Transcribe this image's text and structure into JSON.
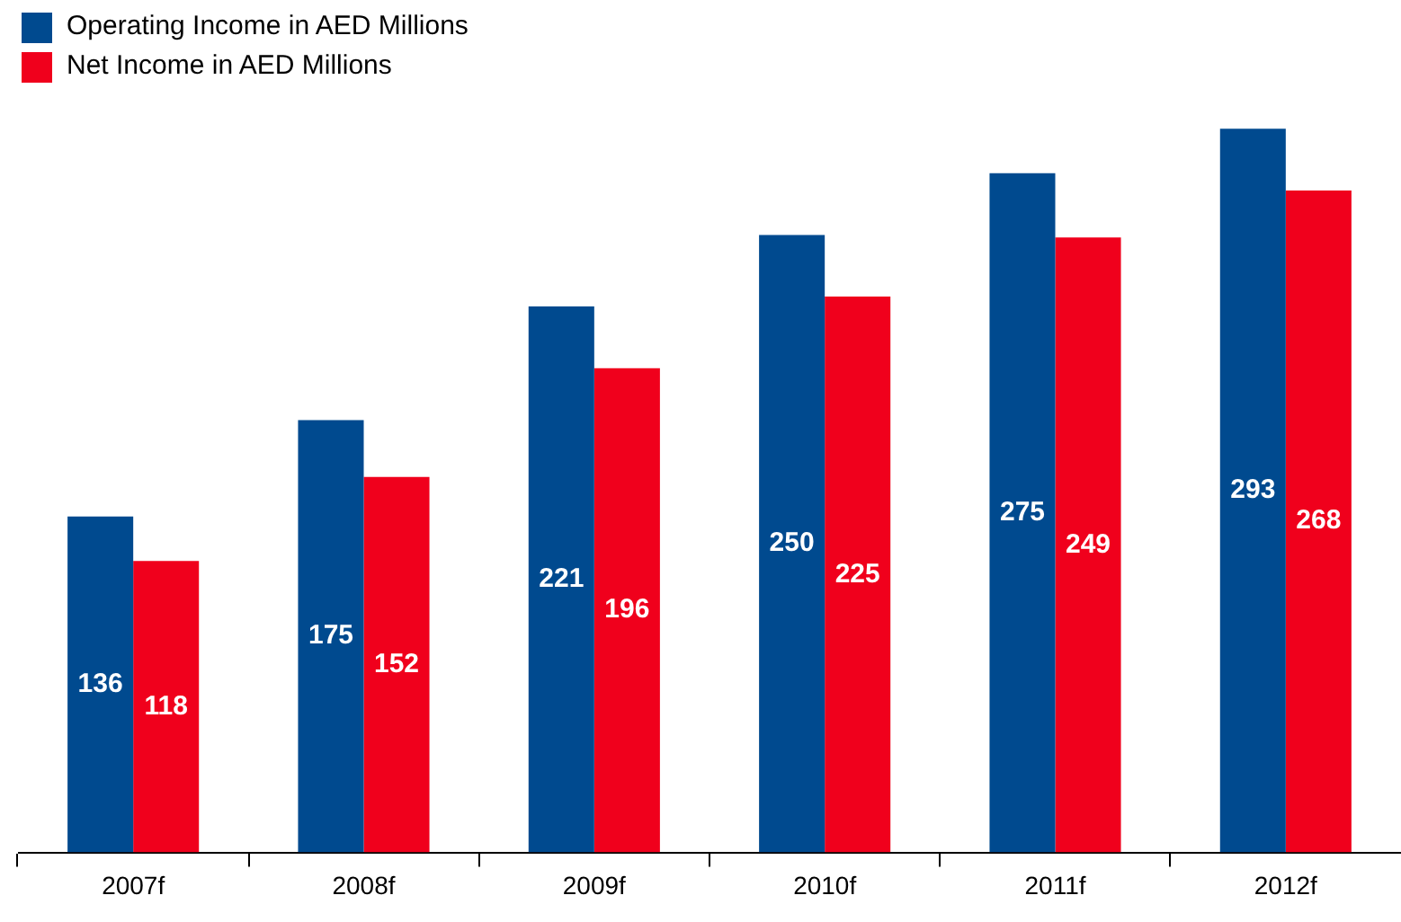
{
  "chart_data": {
    "type": "bar",
    "categories": [
      "2007f",
      "2008f",
      "2009f",
      "2010f",
      "2011f",
      "2012f"
    ],
    "series": [
      {
        "name": "Operating Income in AED Millions",
        "color": "#004a8f",
        "values": [
          136,
          175,
          221,
          250,
          275,
          293
        ]
      },
      {
        "name": "Net Income in AED Millions",
        "color": "#f0001c",
        "values": [
          118,
          152,
          196,
          225,
          249,
          268
        ]
      }
    ],
    "data_labels": true,
    "legend": "top left",
    "grid": false
  }
}
